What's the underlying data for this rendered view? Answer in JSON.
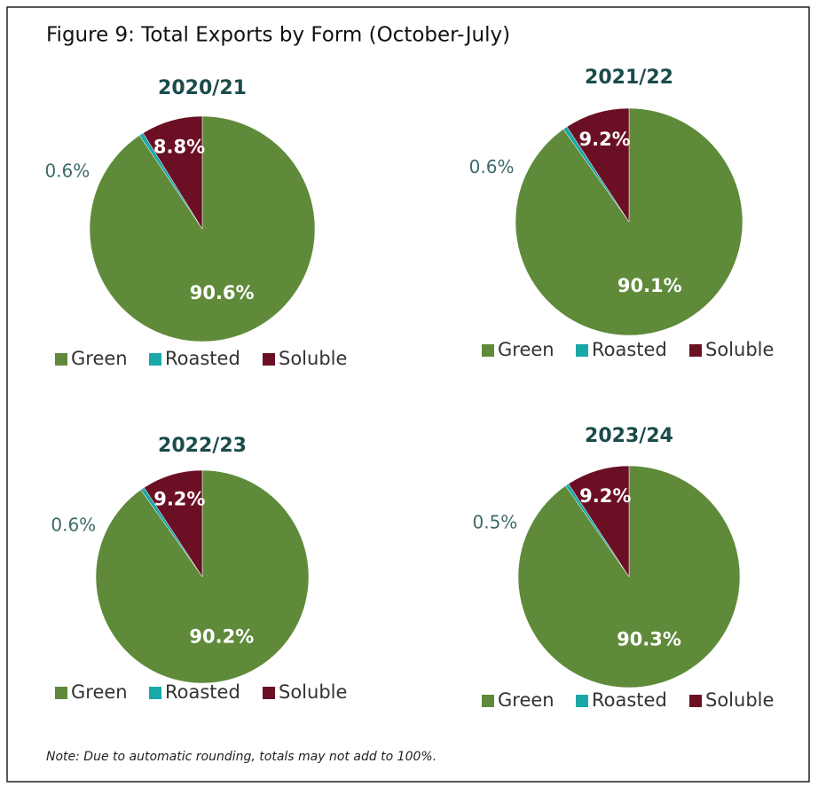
{
  "title": "Figure 9: Total Exports by Form (October-July)",
  "note": "Note: Due to automatic rounding, totals may not add to 100%.",
  "chart_data": [
    {
      "type": "pie",
      "title": "2020/21",
      "categories": [
        "Green",
        "Roasted",
        "Soluble"
      ],
      "values": [
        90.6,
        0.6,
        8.8
      ],
      "value_labels": [
        "90.6%",
        "0.6%",
        "8.8%"
      ],
      "colors": [
        "#5f8a3a",
        "#1aa7a8",
        "#6b0f24"
      ]
    },
    {
      "type": "pie",
      "title": "2021/22",
      "categories": [
        "Green",
        "Roasted",
        "Soluble"
      ],
      "values": [
        90.1,
        0.6,
        9.2
      ],
      "value_labels": [
        "90.1%",
        "0.6%",
        "9.2%"
      ],
      "colors": [
        "#5f8a3a",
        "#1aa7a8",
        "#6b0f24"
      ]
    },
    {
      "type": "pie",
      "title": "2022/23",
      "categories": [
        "Green",
        "Roasted",
        "Soluble"
      ],
      "values": [
        90.2,
        0.6,
        9.2
      ],
      "value_labels": [
        "90.2%",
        "0.6%",
        "9.2%"
      ],
      "colors": [
        "#5f8a3a",
        "#1aa7a8",
        "#6b0f24"
      ]
    },
    {
      "type": "pie",
      "title": "2023/24",
      "categories": [
        "Green",
        "Roasted",
        "Soluble"
      ],
      "values": [
        90.3,
        0.5,
        9.2
      ],
      "value_labels": [
        "90.3%",
        "0.5%",
        "9.2%"
      ],
      "colors": [
        "#5f8a3a",
        "#1aa7a8",
        "#6b0f24"
      ]
    }
  ]
}
